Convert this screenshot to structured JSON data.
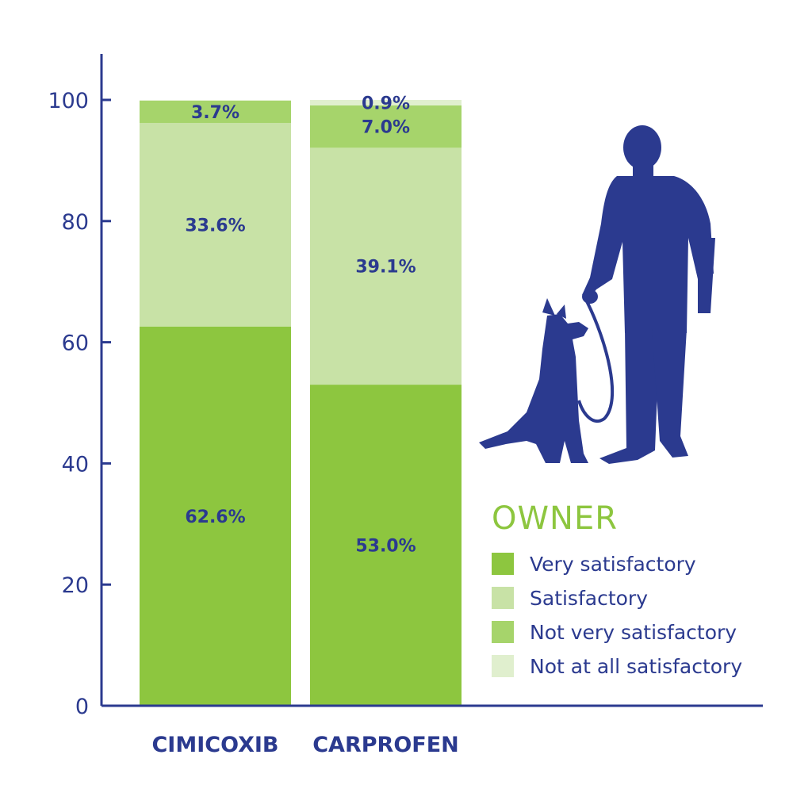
{
  "chart_data": {
    "type": "bar",
    "stacked": true,
    "categories": [
      "CIMICOXIB",
      "CARPROFEN"
    ],
    "series": [
      {
        "name": "Very satisfactory",
        "values": [
          62.6,
          53.0
        ],
        "labels": [
          "62.6%",
          "53.0%"
        ],
        "color": "#8dc63f"
      },
      {
        "name": "Satisfactory",
        "values": [
          33.6,
          39.1
        ],
        "labels": [
          "33.6%",
          "39.1%"
        ],
        "color": "#c8e2a6"
      },
      {
        "name": "Not very satisfactory",
        "values": [
          3.7,
          7.0
        ],
        "labels": [
          "3.7%",
          "7.0%"
        ],
        "color": "#a6d46b"
      },
      {
        "name": "Not at all satisfactory",
        "values": [
          0,
          0.9
        ],
        "labels": [
          "",
          "0.9%"
        ],
        "color": "#e0efce"
      }
    ],
    "ylim": [
      0,
      100
    ],
    "yticks": [
      0,
      20,
      40,
      60,
      80,
      100
    ],
    "xlabel": "",
    "ylabel": "",
    "legend": {
      "title": "OWNER",
      "position": "right"
    },
    "grid": false
  },
  "colors": {
    "axis": "#2b3a8f",
    "text": "#2b3a8f",
    "accent": "#8dc63f",
    "silhouette": "#2b3a8f"
  },
  "illustration": {
    "icon": "owner-with-dog-silhouette-icon"
  }
}
